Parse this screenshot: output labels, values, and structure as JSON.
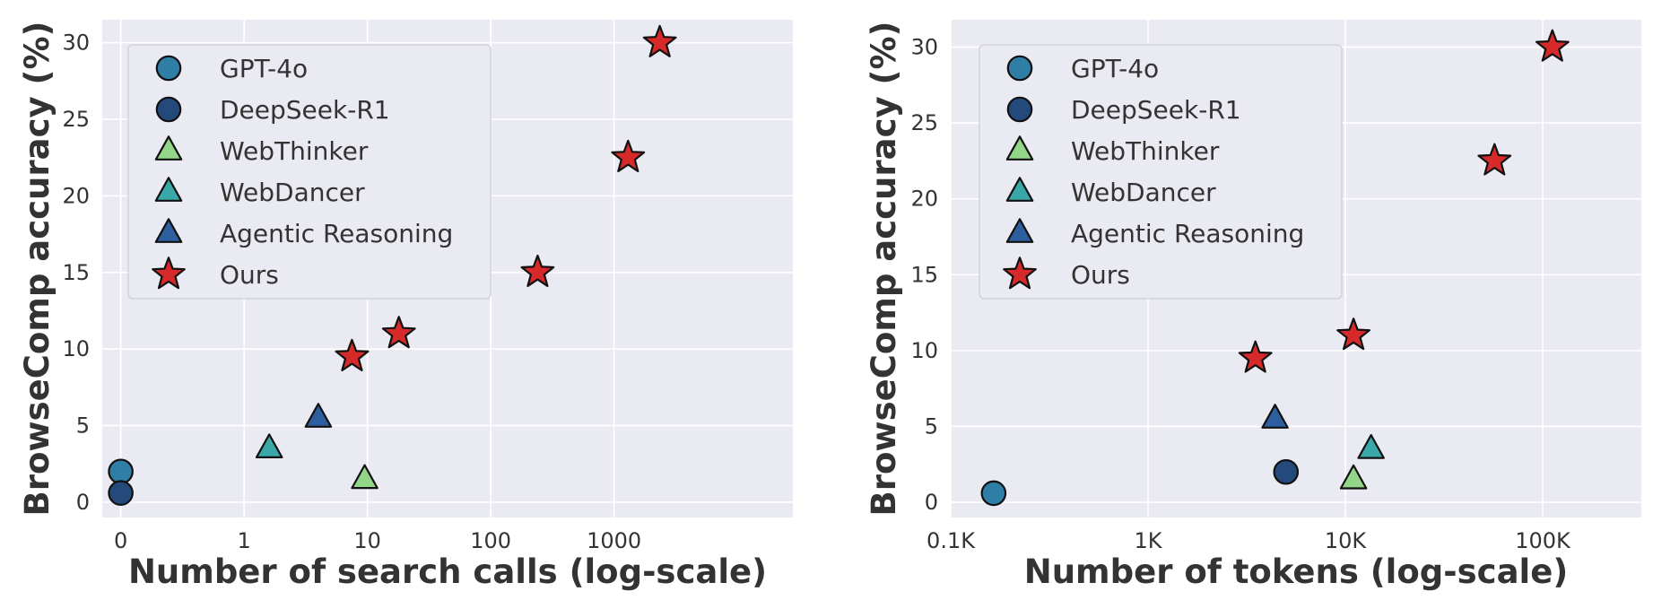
{
  "chart_data": [
    {
      "type": "scatter",
      "xlabel": "Number of search calls (log-scale)",
      "ylabel": "BrowseComp accuracy (%)",
      "xscale": "symlog",
      "xticks": [
        0,
        1,
        10,
        100,
        1000
      ],
      "xtick_labels": [
        "0",
        "1",
        "10",
        "100",
        "1000"
      ],
      "yticks": [
        0,
        5,
        10,
        15,
        20,
        25,
        30
      ],
      "ylim": [
        -1,
        31.5
      ],
      "grid": true,
      "legend": "upper-left",
      "series": [
        {
          "name": "GPT-4o",
          "marker": "circle",
          "color": "#2e7ea6",
          "points": [
            {
              "x": 0,
              "y": 2.0
            }
          ]
        },
        {
          "name": "DeepSeek-R1",
          "marker": "circle",
          "color": "#234a7a",
          "points": [
            {
              "x": 0,
              "y": 0.6
            }
          ]
        },
        {
          "name": "WebThinker",
          "marker": "triangle",
          "color": "#93d68a",
          "points": [
            {
              "x": 9.5,
              "y": 1.5
            }
          ]
        },
        {
          "name": "WebDancer",
          "marker": "triangle",
          "color": "#3aa8a8",
          "points": [
            {
              "x": 1.6,
              "y": 3.5
            }
          ]
        },
        {
          "name": "Agentic Reasoning",
          "marker": "triangle",
          "color": "#2d5f9e",
          "points": [
            {
              "x": 4,
              "y": 5.5
            }
          ]
        },
        {
          "name": "Ours",
          "marker": "star",
          "color": "#d62a2a",
          "points": [
            {
              "x": 7.5,
              "y": 9.5
            },
            {
              "x": 18,
              "y": 11.0
            },
            {
              "x": 240,
              "y": 15.0
            },
            {
              "x": 1300,
              "y": 22.5
            },
            {
              "x": 2350,
              "y": 30.0
            }
          ]
        }
      ]
    },
    {
      "type": "scatter",
      "xlabel": "Number of tokens (log-scale)",
      "ylabel": "BrowseComp accuracy (%)",
      "xscale": "log",
      "xticks": [
        100,
        1000,
        10000,
        100000
      ],
      "xtick_labels": [
        "0.1K",
        "1K",
        "10K",
        "100K"
      ],
      "yticks": [
        0,
        5,
        10,
        15,
        20,
        25,
        30
      ],
      "ylim": [
        -1,
        31.8
      ],
      "grid": true,
      "legend": "upper-left",
      "series": [
        {
          "name": "GPT-4o",
          "marker": "circle",
          "color": "#2e7ea6",
          "points": [
            {
              "x": 165,
              "y": 0.6
            }
          ]
        },
        {
          "name": "DeepSeek-R1",
          "marker": "circle",
          "color": "#234a7a",
          "points": [
            {
              "x": 5000,
              "y": 2.0
            }
          ]
        },
        {
          "name": "WebThinker",
          "marker": "triangle",
          "color": "#93d68a",
          "points": [
            {
              "x": 11000,
              "y": 1.5
            }
          ]
        },
        {
          "name": "WebDancer",
          "marker": "triangle",
          "color": "#3aa8a8",
          "points": [
            {
              "x": 13500,
              "y": 3.5
            }
          ]
        },
        {
          "name": "Agentic Reasoning",
          "marker": "triangle",
          "color": "#2d5f9e",
          "points": [
            {
              "x": 4400,
              "y": 5.5
            }
          ]
        },
        {
          "name": "Ours",
          "marker": "star",
          "color": "#d62a2a",
          "points": [
            {
              "x": 3500,
              "y": 9.5
            },
            {
              "x": 11000,
              "y": 11.0
            },
            {
              "x": 57000,
              "y": 22.5
            },
            {
              "x": 112000,
              "y": 30.0
            }
          ]
        }
      ]
    }
  ]
}
